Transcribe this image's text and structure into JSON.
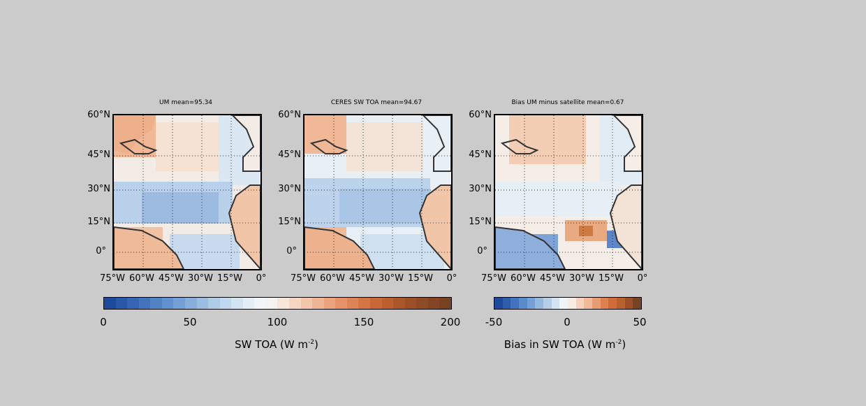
{
  "panels": [
    {
      "title": "UM mean=95.34"
    },
    {
      "title": "CERES SW TOA mean=94.67"
    },
    {
      "title": "Bias UM minus satellite mean=0.67"
    }
  ],
  "lat_labels": [
    "60°N",
    "45°N",
    "30°N",
    "15°N",
    "0°"
  ],
  "lon_labels": [
    "75°W",
    "60°W",
    "45°W",
    "30°W",
    "15°W",
    "0°"
  ],
  "colorbar_sw": {
    "ticks": [
      "0",
      "50",
      "100",
      "150",
      "200"
    ],
    "label_main": "SW TOA (W m",
    "label_sup": "-2",
    "label_end": ")",
    "colors": [
      "#1e4a9c",
      "#2a58a8",
      "#3565b3",
      "#4373bd",
      "#5281c6",
      "#6390ce",
      "#75a0d6",
      "#88afdc",
      "#9bbde2",
      "#aecbe7",
      "#c0d8ed",
      "#d2e4f2",
      "#e3eef6",
      "#eff5f8",
      "#f6f2ee",
      "#f8e6da",
      "#f6d6c2",
      "#f3c5aa",
      "#efb493",
      "#eba37e",
      "#e5926a",
      "#de8356",
      "#d57444",
      "#c96837",
      "#bb5f30",
      "#ac572b",
      "#9d5028",
      "#8f4a26",
      "#834524",
      "#774122"
    ]
  },
  "colorbar_bias": {
    "ticks": [
      "-50",
      "0",
      "50"
    ],
    "label_main": "Bias in SW TOA (W m",
    "label_sup": "-2",
    "label_end": ")",
    "colors": [
      "#1e4a9c",
      "#2f5da9",
      "#4373bd",
      "#5a8acb",
      "#75a0d6",
      "#94b9e0",
      "#b5cfe9",
      "#d3e4f2",
      "#eef4f8",
      "#f9ebe0",
      "#f6d3bd",
      "#f0b999",
      "#e89c74",
      "#de8151",
      "#cf6c3a",
      "#b8602f",
      "#9d5028",
      "#7a4222"
    ]
  }
}
